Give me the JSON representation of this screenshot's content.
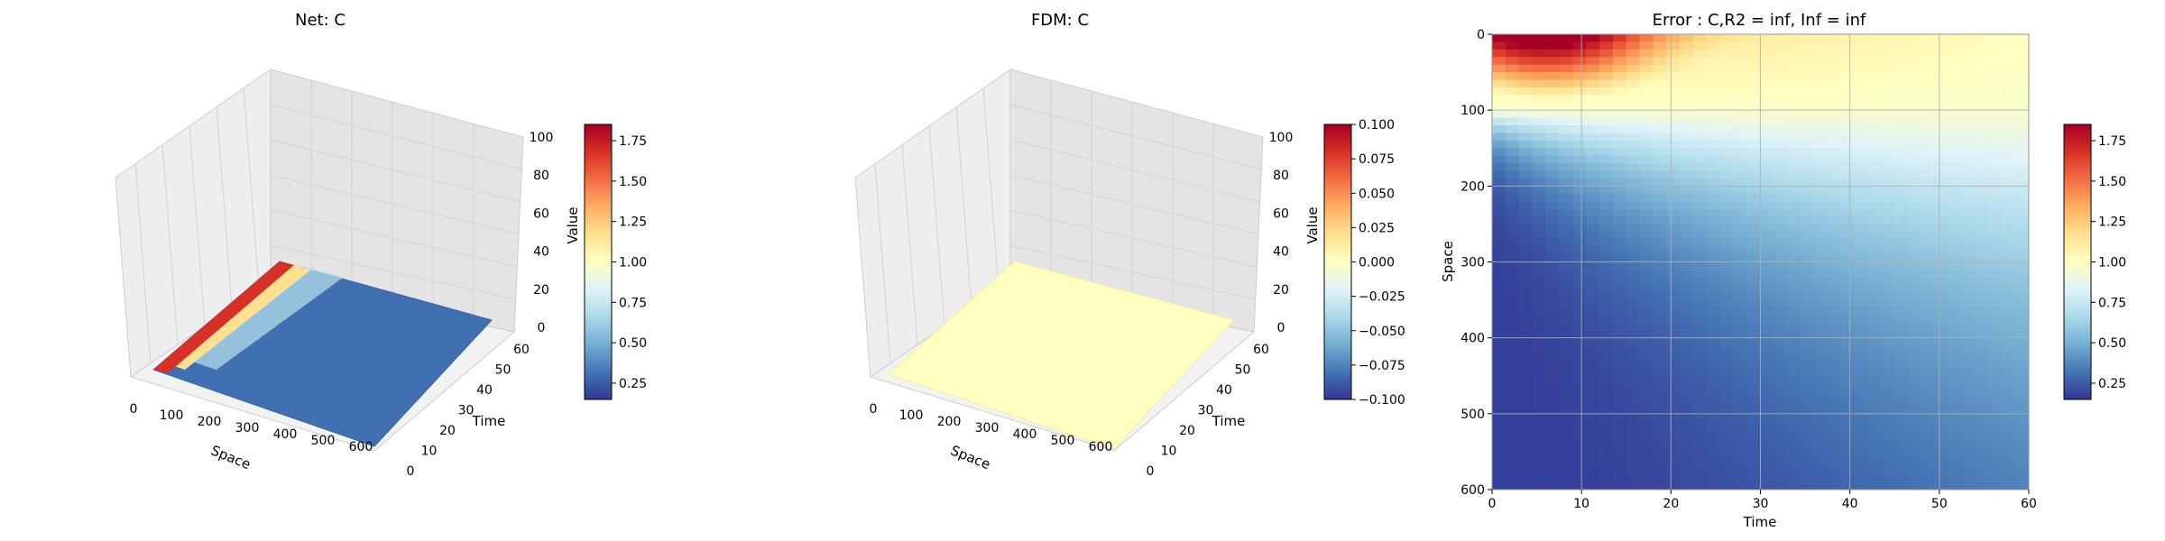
{
  "chart_data": [
    {
      "type": "surface",
      "title": "Net: C",
      "xlabel": "Space",
      "ylabel": "Time",
      "zlabel": "Value",
      "x_ticks": [
        "0",
        "100",
        "200",
        "300",
        "400",
        "500",
        "600"
      ],
      "y_ticks": [
        "0",
        "10",
        "20",
        "30",
        "40",
        "50",
        "60"
      ],
      "z_ticks": [
        "0",
        "20",
        "40",
        "60",
        "80",
        "100"
      ],
      "xlim": [
        0,
        600
      ],
      "ylim": [
        0,
        60
      ],
      "zlim": [
        0,
        100
      ],
      "colorbar": {
        "ticks": [
          "0.25",
          "0.50",
          "0.75",
          "1.00",
          "1.25",
          "1.50",
          "1.75"
        ],
        "range": [
          0.12,
          1.95
        ]
      },
      "colormap": "RdYlBu_r",
      "surface": {
        "x": [
          0,
          100,
          200,
          300,
          400,
          500,
          600
        ],
        "peak_value": 1.95,
        "boundary_value": 1.0,
        "boundary_space": 100,
        "far_value": 0.15
      }
    },
    {
      "type": "surface",
      "title": "FDM: C",
      "xlabel": "Space",
      "ylabel": "Time",
      "zlabel": "Value",
      "x_ticks": [
        "0",
        "100",
        "200",
        "300",
        "400",
        "500",
        "600"
      ],
      "y_ticks": [
        "0",
        "10",
        "20",
        "30",
        "40",
        "50",
        "60"
      ],
      "z_ticks": [
        "0",
        "20",
        "40",
        "60",
        "80",
        "100"
      ],
      "xlim": [
        0,
        600
      ],
      "ylim": [
        0,
        60
      ],
      "zlim": [
        0,
        100
      ],
      "colorbar": {
        "ticks": [
          "0.100",
          "0.075",
          "0.050",
          "0.025",
          "0.000",
          "−0.025",
          "−0.050",
          "−0.075",
          "−0.100"
        ],
        "range": [
          -0.1,
          0.1
        ]
      },
      "colormap": "RdYlBu_r",
      "surface": {
        "constant_value": 0.0
      }
    },
    {
      "type": "heatmap",
      "title": "Error : C,R2 = inf, Inf = inf",
      "xlabel": "Time",
      "ylabel": "Space",
      "x_ticks": [
        "0",
        "10",
        "20",
        "30",
        "40",
        "50",
        "60"
      ],
      "y_ticks": [
        "0",
        "100",
        "200",
        "300",
        "400",
        "500",
        "600"
      ],
      "xlim": [
        0,
        60
      ],
      "ylim": [
        600,
        0
      ],
      "grid": true,
      "colormap": "RdYlBu_r",
      "colorbar": {
        "ticks": [
          "0.25",
          "0.50",
          "0.75",
          "1.00",
          "1.25",
          "1.50",
          "1.75"
        ],
        "range": [
          0.12,
          1.95
        ]
      }
    }
  ]
}
